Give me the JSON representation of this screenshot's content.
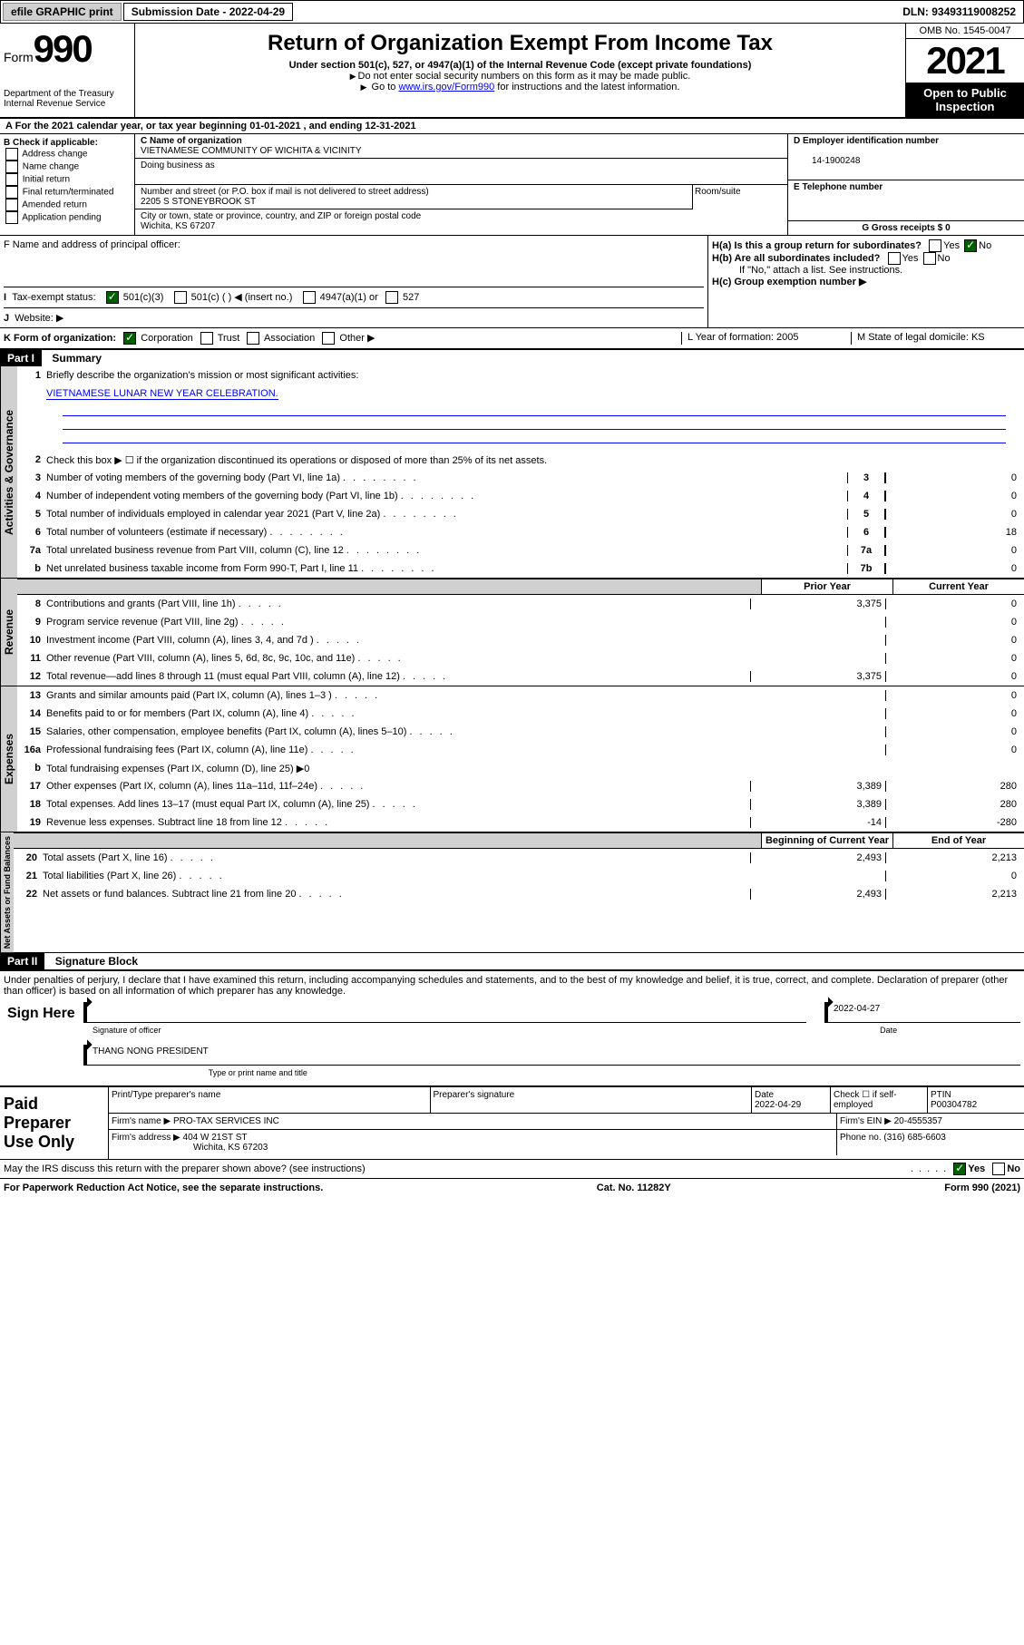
{
  "top": {
    "efile": "efile GRAPHIC print",
    "sub_label": "Submission Date - 2022-04-29",
    "dln": "DLN: 93493119008252"
  },
  "header": {
    "form_label": "Form",
    "form_num": "990",
    "dept": "Department of the Treasury Internal Revenue Service",
    "title": "Return of Organization Exempt From Income Tax",
    "subtitle": "Under section 501(c), 527, or 4947(a)(1) of the Internal Revenue Code (except private foundations)",
    "note1": "Do not enter social security numbers on this form as it may be made public.",
    "note2_pre": "Go to ",
    "note2_link": "www.irs.gov/Form990",
    "note2_post": " for instructions and the latest information.",
    "omb": "OMB No. 1545-0047",
    "year": "2021",
    "open": "Open to Public Inspection"
  },
  "rowA": "For the 2021 calendar year, or tax year beginning 01-01-2021   , and ending 12-31-2021",
  "colB": {
    "lbl": "B Check if applicable:",
    "items": [
      "Address change",
      "Name change",
      "Initial return",
      "Final return/terminated",
      "Amended return",
      "Application pending"
    ]
  },
  "colC": {
    "name_lbl": "C Name of organization",
    "name": "VIETNAMESE COMMUNITY OF WICHITA & VICINITY",
    "dba_lbl": "Doing business as",
    "addr_lbl": "Number and street (or P.O. box if mail is not delivered to street address)",
    "addr": "2205 S STONEYBROOK ST",
    "room_lbl": "Room/suite",
    "city_lbl": "City or town, state or province, country, and ZIP or foreign postal code",
    "city": "Wichita, KS  67207"
  },
  "colD": {
    "ein_lbl": "D Employer identification number",
    "ein": "14-1900248",
    "tel_lbl": "E Telephone number",
    "gross_lbl": "G Gross receipts $ 0"
  },
  "rowF": {
    "lbl": "F  Name and address of principal officer:",
    "ha": "H(a)  Is this a group return for subordinates?",
    "hb": "H(b)  Are all subordinates included?",
    "hb_note": "If \"No,\" attach a list. See instructions.",
    "hc": "H(c)  Group exemption number ▶",
    "yes": "Yes",
    "no": "No"
  },
  "rowI": {
    "lbl": "Tax-exempt status:",
    "opts": [
      "501(c)(3)",
      "501(c) (  ) ◀ (insert no.)",
      "4947(a)(1) or",
      "527"
    ]
  },
  "rowJ": "Website: ▶",
  "rowK": {
    "lbl": "K Form of organization:",
    "opts": [
      "Corporation",
      "Trust",
      "Association",
      "Other ▶"
    ],
    "l": "L Year of formation: 2005",
    "m": "M State of legal domicile: KS"
  },
  "part1": {
    "hdr": "Part I",
    "title": "Summary",
    "q1": "Briefly describe the organization's mission or most significant activities:",
    "mission": "VIETNAMESE LUNAR NEW YEAR CELEBRATION.",
    "q2": "Check this box ▶ ☐  if the organization discontinued its operations or disposed of more than 25% of its net assets."
  },
  "gov": {
    "label": "Activities & Governance",
    "lines": [
      {
        "n": "3",
        "t": "Number of voting members of the governing body (Part VI, line 1a)",
        "box": "3",
        "v": "0"
      },
      {
        "n": "4",
        "t": "Number of independent voting members of the governing body (Part VI, line 1b)",
        "box": "4",
        "v": "0"
      },
      {
        "n": "5",
        "t": "Total number of individuals employed in calendar year 2021 (Part V, line 2a)",
        "box": "5",
        "v": "0"
      },
      {
        "n": "6",
        "t": "Total number of volunteers (estimate if necessary)",
        "box": "6",
        "v": "18"
      },
      {
        "n": "7a",
        "t": "Total unrelated business revenue from Part VIII, column (C), line 12",
        "box": "7a",
        "v": "0"
      },
      {
        "n": "b",
        "t": "Net unrelated business taxable income from Form 990-T, Part I, line 11",
        "box": "7b",
        "v": "0"
      }
    ]
  },
  "cols": {
    "prior": "Prior Year",
    "curr": "Current Year",
    "bcy": "Beginning of Current Year",
    "eoy": "End of Year"
  },
  "rev": {
    "label": "Revenue",
    "lines": [
      {
        "n": "8",
        "t": "Contributions and grants (Part VIII, line 1h)",
        "p": "3,375",
        "c": "0"
      },
      {
        "n": "9",
        "t": "Program service revenue (Part VIII, line 2g)",
        "p": "",
        "c": "0"
      },
      {
        "n": "10",
        "t": "Investment income (Part VIII, column (A), lines 3, 4, and 7d )",
        "p": "",
        "c": "0"
      },
      {
        "n": "11",
        "t": "Other revenue (Part VIII, column (A), lines 5, 6d, 8c, 9c, 10c, and 11e)",
        "p": "",
        "c": "0"
      },
      {
        "n": "12",
        "t": "Total revenue—add lines 8 through 11 (must equal Part VIII, column (A), line 12)",
        "p": "3,375",
        "c": "0"
      }
    ]
  },
  "exp": {
    "label": "Expenses",
    "lines": [
      {
        "n": "13",
        "t": "Grants and similar amounts paid (Part IX, column (A), lines 1–3 )",
        "p": "",
        "c": "0"
      },
      {
        "n": "14",
        "t": "Benefits paid to or for members (Part IX, column (A), line 4)",
        "p": "",
        "c": "0"
      },
      {
        "n": "15",
        "t": "Salaries, other compensation, employee benefits (Part IX, column (A), lines 5–10)",
        "p": "",
        "c": "0"
      },
      {
        "n": "16a",
        "t": "Professional fundraising fees (Part IX, column (A), line 11e)",
        "p": "",
        "c": "0"
      },
      {
        "n": "b",
        "t": "Total fundraising expenses (Part IX, column (D), line 25) ▶0",
        "grey": true
      },
      {
        "n": "17",
        "t": "Other expenses (Part IX, column (A), lines 11a–11d, 11f–24e)",
        "p": "3,389",
        "c": "280"
      },
      {
        "n": "18",
        "t": "Total expenses. Add lines 13–17 (must equal Part IX, column (A), line 25)",
        "p": "3,389",
        "c": "280"
      },
      {
        "n": "19",
        "t": "Revenue less expenses. Subtract line 18 from line 12",
        "p": "-14",
        "c": "-280"
      }
    ]
  },
  "net": {
    "label": "Net Assets or Fund Balances",
    "lines": [
      {
        "n": "20",
        "t": "Total assets (Part X, line 16)",
        "p": "2,493",
        "c": "2,213"
      },
      {
        "n": "21",
        "t": "Total liabilities (Part X, line 26)",
        "p": "",
        "c": "0"
      },
      {
        "n": "22",
        "t": "Net assets or fund balances. Subtract line 21 from line 20",
        "p": "2,493",
        "c": "2,213"
      }
    ]
  },
  "part2": {
    "hdr": "Part II",
    "title": "Signature Block"
  },
  "sig": {
    "decl": "Under penalties of perjury, I declare that I have examined this return, including accompanying schedules and statements, and to the best of my knowledge and belief, it is true, correct, and complete. Declaration of preparer (other than officer) is based on all information of which preparer has any knowledge.",
    "sign_here": "Sign Here",
    "sig_label": "Signature of officer",
    "date": "2022-04-27",
    "date_lbl": "Date",
    "name": "THANG NONG PRESIDENT",
    "name_lbl": "Type or print name and title"
  },
  "paid": {
    "title": "Paid Preparer Use Only",
    "h": [
      "Print/Type preparer's name",
      "Preparer's signature",
      "Date",
      "Check ☐ if self-employed",
      "PTIN"
    ],
    "date": "2022-04-29",
    "ptin": "P00304782",
    "firm_lbl": "Firm's name   ▶",
    "firm": "PRO-TAX SERVICES INC",
    "ein_lbl": "Firm's EIN ▶",
    "ein": "20-4555357",
    "addr_lbl": "Firm's address ▶",
    "addr": "404 W 21ST ST",
    "city": "Wichita, KS  67203",
    "phone_lbl": "Phone no.",
    "phone": "(316) 685-6603"
  },
  "discuss": "May the IRS discuss this return with the preparer shown above? (see instructions)",
  "footer": {
    "l": "For Paperwork Reduction Act Notice, see the separate instructions.",
    "c": "Cat. No. 11282Y",
    "r": "Form 990 (2021)"
  },
  "colors": {
    "blue": "#0000ee",
    "green": "#006000",
    "grey": "#d0d0d0",
    "darkgrey": "#808080"
  }
}
